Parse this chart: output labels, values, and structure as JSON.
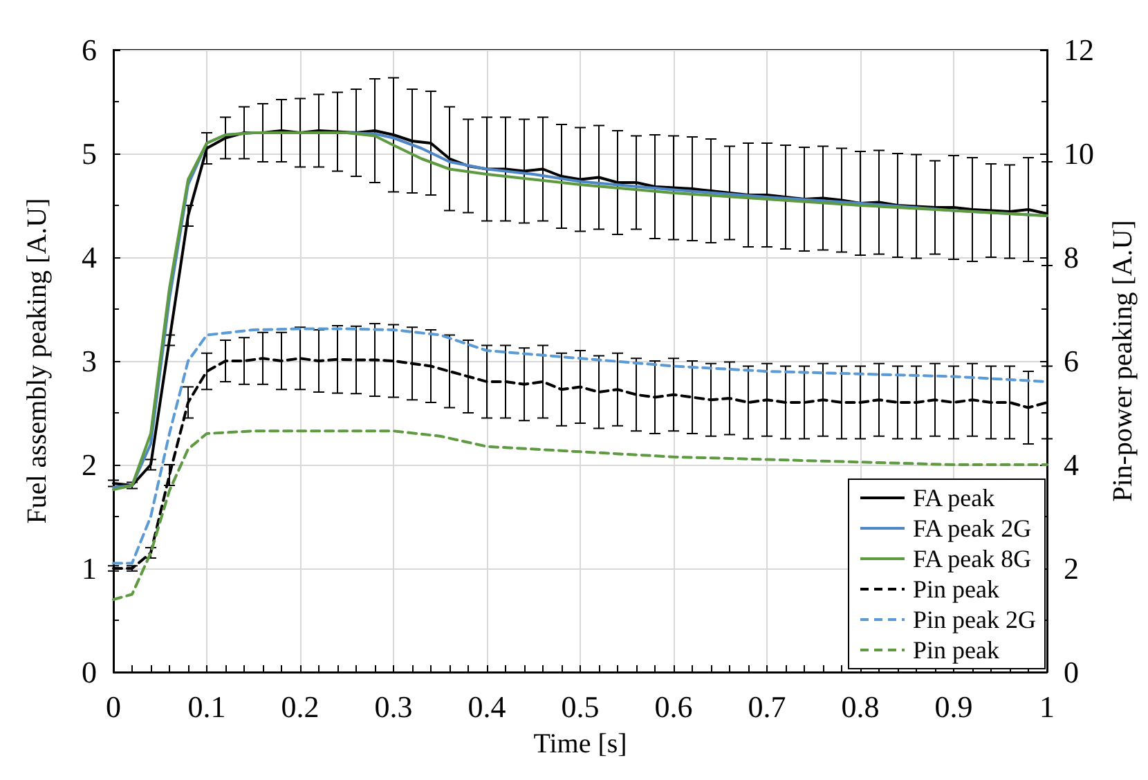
{
  "chart_data": {
    "type": "line",
    "xlabel": "Time [s]",
    "ylabel": "Fuel assembly peaking [A.U]",
    "y2label": "Pin-power peaking [A.U]",
    "xlim": [
      0,
      1
    ],
    "xticks": [
      0,
      0.1,
      0.2,
      0.3,
      0.4,
      0.5,
      0.6,
      0.7,
      0.8,
      0.9,
      1
    ],
    "ylim": [
      0,
      6
    ],
    "yticks": [
      0,
      1,
      2,
      3,
      4,
      5,
      6
    ],
    "y2lim": [
      0,
      12
    ],
    "y2ticks": [
      0,
      2,
      4,
      6,
      8,
      10,
      12
    ],
    "grid": true,
    "legend": "bottom right",
    "marker": "none",
    "series": [
      {
        "name": "FA peak",
        "color": "#000000",
        "line_style": "solid",
        "x": [
          0,
          0.02,
          0.04,
          0.06,
          0.08,
          0.1,
          0.12,
          0.14,
          0.16,
          0.18,
          0.2,
          0.22,
          0.24,
          0.26,
          0.28,
          0.3,
          0.32,
          0.34,
          0.36,
          0.38,
          0.4,
          0.42,
          0.44,
          0.46,
          0.48,
          0.5,
          0.52,
          0.54,
          0.56,
          0.58,
          0.6,
          0.62,
          0.64,
          0.66,
          0.68,
          0.7,
          0.72,
          0.74,
          0.76,
          0.78,
          0.8,
          0.82,
          0.84,
          0.86,
          0.88,
          0.9,
          0.92,
          0.94,
          0.96,
          0.98,
          1
        ],
        "values": [
          1.82,
          1.8,
          2.0,
          3.2,
          4.4,
          5.05,
          5.15,
          5.2,
          5.2,
          5.22,
          5.2,
          5.22,
          5.21,
          5.2,
          5.22,
          5.18,
          5.12,
          5.1,
          4.95,
          4.88,
          4.85,
          4.85,
          4.83,
          4.85,
          4.78,
          4.75,
          4.77,
          4.72,
          4.72,
          4.68,
          4.67,
          4.66,
          4.64,
          4.62,
          4.6,
          4.6,
          4.58,
          4.56,
          4.57,
          4.55,
          4.52,
          4.53,
          4.5,
          4.49,
          4.48,
          4.48,
          4.46,
          4.45,
          4.44,
          4.46,
          4.42
        ],
        "errors": [
          0.03,
          0.03,
          0.05,
          0.05,
          0.1,
          0.15,
          0.2,
          0.25,
          0.28,
          0.3,
          0.33,
          0.35,
          0.38,
          0.42,
          0.5,
          0.55,
          0.5,
          0.5,
          0.5,
          0.45,
          0.5,
          0.5,
          0.5,
          0.5,
          0.5,
          0.5,
          0.5,
          0.5,
          0.45,
          0.5,
          0.5,
          0.5,
          0.5,
          0.45,
          0.5,
          0.5,
          0.5,
          0.5,
          0.5,
          0.5,
          0.5,
          0.5,
          0.5,
          0.5,
          0.45,
          0.5,
          0.5,
          0.45,
          0.45,
          0.5,
          0.5
        ]
      },
      {
        "name": "FA peak 2G",
        "color": "#4f87c6",
        "line_style": "solid",
        "x": [
          0,
          0.02,
          0.04,
          0.06,
          0.08,
          0.1,
          0.12,
          0.15,
          0.2,
          0.25,
          0.28,
          0.3,
          0.33,
          0.36,
          0.4,
          0.45,
          0.5,
          0.6,
          0.7,
          0.8,
          0.9,
          1
        ],
        "values": [
          1.78,
          1.8,
          2.2,
          3.6,
          4.7,
          5.1,
          5.18,
          5.2,
          5.2,
          5.2,
          5.19,
          5.15,
          5.05,
          4.92,
          4.85,
          4.8,
          4.73,
          4.65,
          4.58,
          4.52,
          4.45,
          4.4
        ]
      },
      {
        "name": "FA peak 8G",
        "color": "#5e9a40",
        "line_style": "solid",
        "x": [
          0,
          0.02,
          0.04,
          0.06,
          0.08,
          0.1,
          0.12,
          0.15,
          0.2,
          0.25,
          0.28,
          0.3,
          0.33,
          0.36,
          0.4,
          0.45,
          0.5,
          0.6,
          0.7,
          0.8,
          0.9,
          1
        ],
        "values": [
          1.76,
          1.8,
          2.3,
          3.7,
          4.75,
          5.1,
          5.18,
          5.2,
          5.2,
          5.2,
          5.17,
          5.08,
          4.95,
          4.85,
          4.8,
          4.75,
          4.7,
          4.62,
          4.56,
          4.5,
          4.45,
          4.4
        ]
      },
      {
        "name": "Pin peak",
        "color": "#000000",
        "line_style": "dashed",
        "axis": "y2",
        "x": [
          0,
          0.02,
          0.04,
          0.06,
          0.08,
          0.1,
          0.12,
          0.14,
          0.16,
          0.18,
          0.2,
          0.22,
          0.24,
          0.26,
          0.28,
          0.3,
          0.32,
          0.34,
          0.36,
          0.38,
          0.4,
          0.42,
          0.44,
          0.46,
          0.48,
          0.5,
          0.52,
          0.54,
          0.56,
          0.58,
          0.6,
          0.62,
          0.64,
          0.66,
          0.68,
          0.7,
          0.72,
          0.74,
          0.76,
          0.78,
          0.8,
          0.82,
          0.84,
          0.86,
          0.88,
          0.9,
          0.92,
          0.94,
          0.96,
          0.98,
          1
        ],
        "values": [
          2.0,
          2.0,
          2.3,
          3.8,
          5.2,
          5.8,
          6.0,
          6.0,
          6.05,
          6.0,
          6.05,
          6.0,
          6.03,
          6.02,
          6.02,
          6.0,
          5.95,
          5.9,
          5.8,
          5.7,
          5.6,
          5.6,
          5.55,
          5.6,
          5.45,
          5.5,
          5.4,
          5.45,
          5.35,
          5.3,
          5.35,
          5.3,
          5.25,
          5.28,
          5.2,
          5.25,
          5.2,
          5.2,
          5.25,
          5.2,
          5.2,
          5.25,
          5.2,
          5.2,
          5.25,
          5.2,
          5.25,
          5.2,
          5.2,
          5.1,
          5.2
        ],
        "errors": [
          0.05,
          0.05,
          0.1,
          0.2,
          0.3,
          0.35,
          0.4,
          0.45,
          0.5,
          0.55,
          0.6,
          0.6,
          0.65,
          0.65,
          0.7,
          0.7,
          0.7,
          0.7,
          0.7,
          0.7,
          0.7,
          0.7,
          0.7,
          0.7,
          0.7,
          0.7,
          0.7,
          0.7,
          0.7,
          0.7,
          0.7,
          0.7,
          0.7,
          0.7,
          0.7,
          0.7,
          0.7,
          0.7,
          0.7,
          0.7,
          0.7,
          0.7,
          0.7,
          0.7,
          0.7,
          0.7,
          0.7,
          0.7,
          0.7,
          0.7,
          0.7
        ]
      },
      {
        "name": "Pin peak 2G",
        "color": "#5b9bd5",
        "line_style": "dashed",
        "axis": "y2",
        "x": [
          0,
          0.02,
          0.04,
          0.06,
          0.08,
          0.1,
          0.15,
          0.2,
          0.25,
          0.3,
          0.35,
          0.4,
          0.5,
          0.6,
          0.7,
          0.8,
          0.9,
          1
        ],
        "values": [
          2.1,
          2.1,
          3.0,
          4.6,
          6.0,
          6.5,
          6.6,
          6.62,
          6.62,
          6.6,
          6.5,
          6.2,
          6.05,
          5.9,
          5.8,
          5.75,
          5.7,
          5.6
        ]
      },
      {
        "name": "Pin peak",
        "color": "#5e9a40",
        "line_style": "dashed",
        "axis": "y2",
        "x": [
          0,
          0.02,
          0.04,
          0.06,
          0.08,
          0.1,
          0.15,
          0.2,
          0.3,
          0.35,
          0.4,
          0.5,
          0.6,
          0.7,
          0.8,
          0.9,
          1
        ],
        "values": [
          1.4,
          1.5,
          2.3,
          3.5,
          4.3,
          4.6,
          4.65,
          4.65,
          4.65,
          4.55,
          4.35,
          4.25,
          4.15,
          4.1,
          4.05,
          4.0,
          4.0
        ]
      }
    ]
  }
}
